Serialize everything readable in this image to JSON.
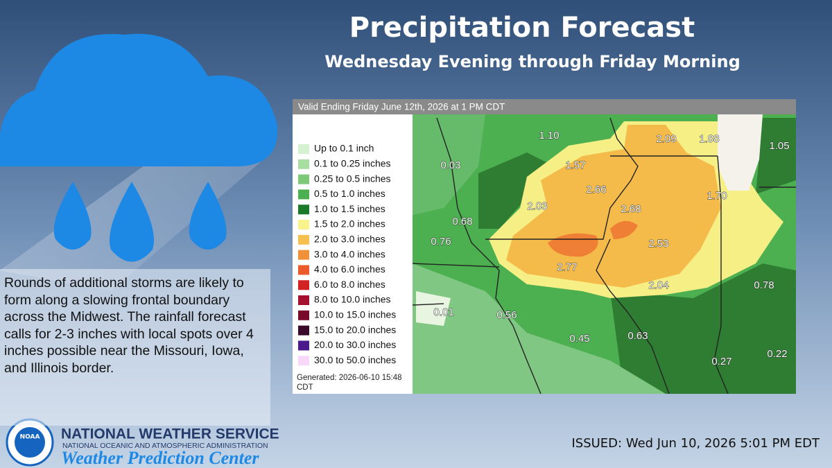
{
  "title": "Precipitation Forecast",
  "subtitle": "Wednesday Evening through Friday Morning",
  "map": {
    "header": "Valid Ending Friday June 12th, 2026 at 1 PM CDT",
    "legend": [
      "Up to 0.1 inch",
      "0.1 to 0.25 inches",
      "0.25 to 0.5 inches",
      "0.5 to 1.0 inches",
      "1.0 to 1.5 inches",
      "1.5 to 2.0 inches",
      "2.0 to 3.0 inches",
      "3.0 to 4.0 inches",
      "4.0 to 6.0 inches",
      "6.0 to 8.0 inches",
      "8.0 to 10.0 inches",
      "10.0 to 15.0 inches",
      "15.0 to 20.0 inches",
      "20.0 to 30.0 inches",
      "30.0 to 50.0 inches"
    ],
    "generated": [
      "Generated: 2026-06-10 15:48",
      "CDT"
    ],
    "labels": [
      "1.10",
      "2.09",
      "1.88",
      "1.05",
      "0.03",
      "1.57",
      "2.66",
      "1.70",
      "2.03",
      "2.68",
      "0.68",
      "0.76",
      "2.53",
      "2.77",
      "2.04",
      "0.78",
      "0.01",
      "0.56",
      "0.45",
      "0.63",
      "0.27",
      "0.22"
    ]
  },
  "description": "Rounds of additional storms are likely to form along a slowing frontal boundary across the Midwest. The rainfall forecast calls for 2-3 inches with local spots over 4 inches possible near the Missouri, Iowa, and Illinois border.",
  "branding": {
    "logo": "NOAA",
    "agency": "NATIONAL WEATHER SERVICE",
    "administration": "NATIONAL OCEANIC AND ATMOSPHERIC ADMINISTRATION",
    "center": "Weather Prediction Center"
  },
  "issued": "ISSUED:  Wed Jun 10, 2026 5:01 PM EDT"
}
